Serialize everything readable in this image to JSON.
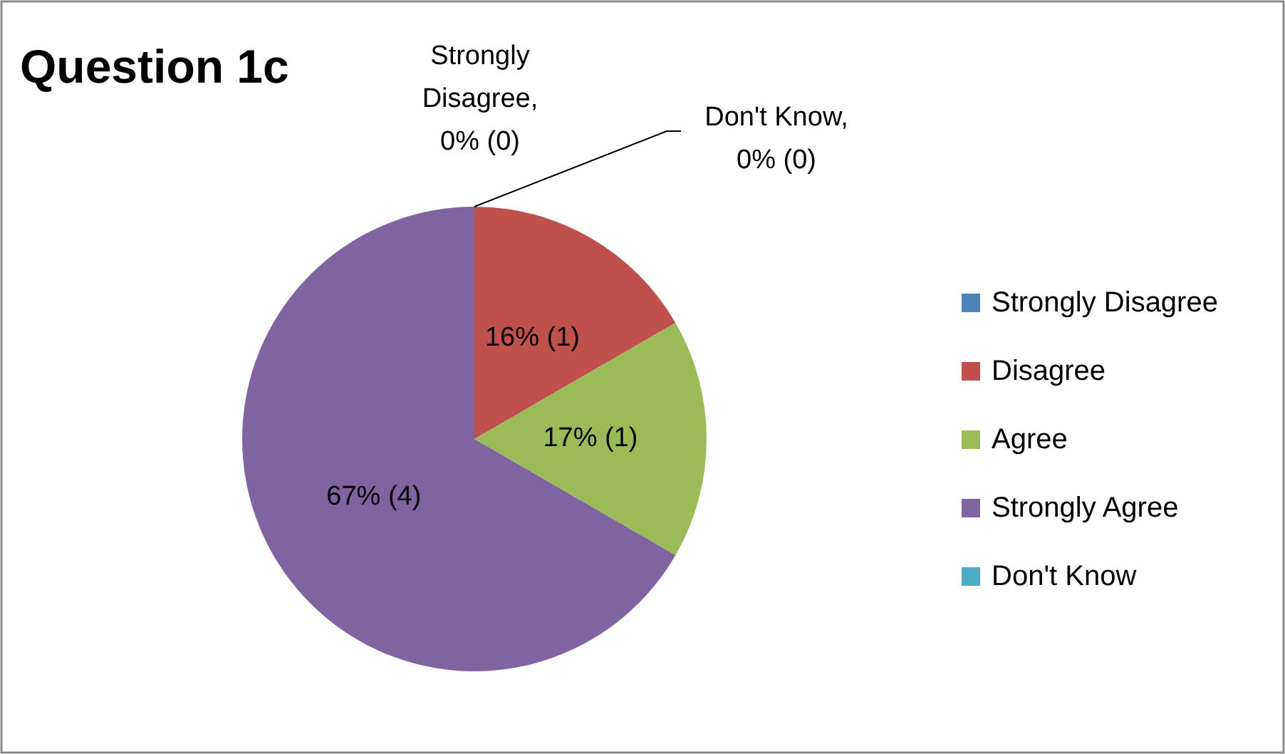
{
  "chart_data": {
    "type": "pie",
    "title": "Question 1c",
    "categories": [
      "Strongly Disagree",
      "Disagree",
      "Agree",
      "Strongly Agree",
      "Don't Know"
    ],
    "values": [
      0,
      1,
      1,
      4,
      0
    ],
    "value_labels": [
      "Strongly Disagree, 0% (0)",
      "16% (1)",
      "17% (1)",
      "67% (4)",
      "Don't Know, 0% (0)"
    ],
    "colors": [
      "#4f81bd",
      "#c0504d",
      "#9bbb59",
      "#8064a2",
      "#4bacc6"
    ],
    "legend": "right"
  }
}
